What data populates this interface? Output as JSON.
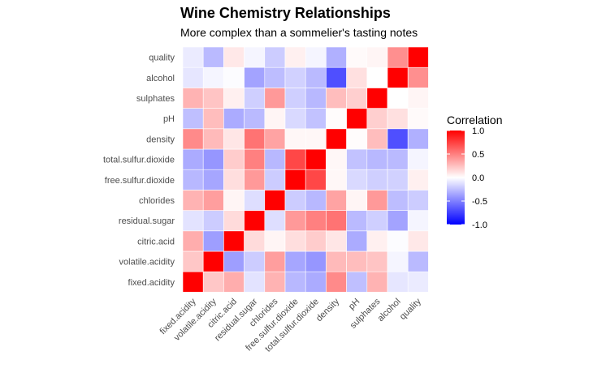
{
  "chart_data": {
    "type": "heatmap",
    "title": "Wine Chemistry Relationships",
    "subtitle": "More complex than a sommelier's tasting notes",
    "x_labels": [
      "fixed.acidity",
      "volatile.acidity",
      "citric.acid",
      "residual.sugar",
      "chlorides",
      "free.sulfur.dioxide",
      "total.sulfur.dioxide",
      "density",
      "pH",
      "sulphates",
      "alcohol",
      "quality"
    ],
    "y_labels": [
      "fixed.acidity",
      "volatile.acidity",
      "citric.acid",
      "residual.sugar",
      "chlorides",
      "free.sulfur.dioxide",
      "total.sulfur.dioxide",
      "density",
      "pH",
      "sulphates",
      "alcohol",
      "quality"
    ],
    "values": [
      [
        1.0,
        0.22,
        0.32,
        -0.11,
        0.3,
        -0.28,
        -0.33,
        0.46,
        -0.25,
        0.3,
        -0.1,
        -0.08
      ],
      [
        0.22,
        1.0,
        -0.38,
        -0.2,
        0.38,
        -0.35,
        -0.41,
        0.27,
        0.26,
        0.23,
        -0.04,
        -0.27
      ],
      [
        0.32,
        -0.38,
        1.0,
        0.14,
        0.04,
        0.13,
        0.2,
        0.1,
        -0.33,
        0.06,
        -0.01,
        0.09
      ],
      [
        -0.11,
        -0.2,
        0.14,
        1.0,
        -0.13,
        0.4,
        0.5,
        0.55,
        -0.27,
        -0.19,
        -0.36,
        -0.04
      ],
      [
        0.3,
        0.38,
        0.04,
        -0.13,
        1.0,
        -0.2,
        -0.28,
        0.36,
        0.04,
        0.4,
        -0.26,
        -0.2
      ],
      [
        -0.28,
        -0.35,
        0.13,
        0.4,
        -0.2,
        1.0,
        0.72,
        0.03,
        -0.15,
        -0.19,
        -0.18,
        0.06
      ],
      [
        -0.33,
        -0.41,
        0.2,
        0.5,
        -0.28,
        0.72,
        1.0,
        0.03,
        -0.24,
        -0.28,
        -0.27,
        -0.04
      ],
      [
        0.46,
        0.27,
        0.1,
        0.55,
        0.36,
        0.03,
        0.03,
        1.0,
        0.01,
        0.26,
        -0.69,
        -0.31
      ],
      [
        -0.25,
        0.26,
        -0.33,
        -0.27,
        0.04,
        -0.15,
        -0.24,
        0.01,
        1.0,
        0.19,
        0.12,
        0.02
      ],
      [
        0.3,
        0.23,
        0.06,
        -0.19,
        0.4,
        -0.19,
        -0.28,
        0.26,
        0.19,
        1.0,
        -0.0,
        0.04
      ],
      [
        -0.1,
        -0.04,
        -0.01,
        -0.36,
        -0.26,
        -0.18,
        -0.27,
        -0.69,
        0.12,
        -0.0,
        1.0,
        0.44
      ],
      [
        -0.08,
        -0.27,
        0.09,
        -0.04,
        -0.2,
        0.06,
        -0.04,
        -0.31,
        0.02,
        0.04,
        0.44,
        1.0
      ]
    ],
    "legend": {
      "title": "Correlation",
      "ticks": [
        "1.0",
        "0.5",
        "0.0",
        "-0.5",
        "-1.0"
      ],
      "range": [
        -1,
        1
      ]
    },
    "colors": {
      "low": "#0000ff",
      "mid": "#ffffff",
      "high": "#ff0000"
    }
  }
}
